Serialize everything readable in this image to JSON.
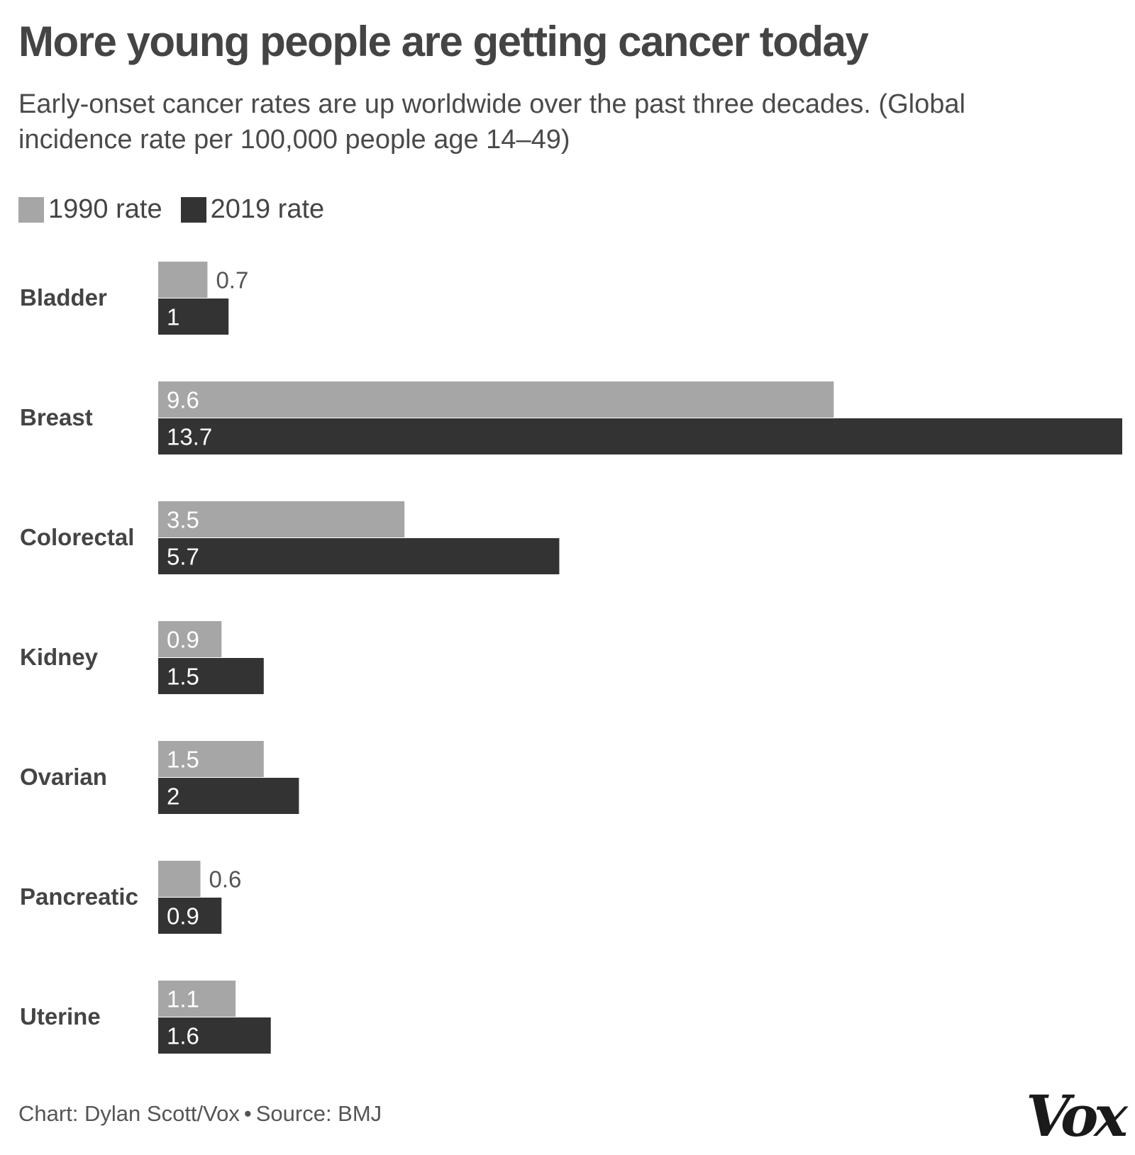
{
  "colors": {
    "series_1990": "#a6a6a6",
    "series_2019": "#333333",
    "category_label": "#444444",
    "label_on_light": "#ffffff",
    "label_outside": "#555555"
  },
  "chart_data": {
    "type": "bar",
    "orientation": "horizontal",
    "title": "More young people are getting cancer today",
    "subtitle": "Early-onset cancer rates are up worldwide over the past three decades. (Global incidence rate per 100,000 people age 14–49)",
    "categories": [
      "Bladder",
      "Breast",
      "Colorectal",
      "Kidney",
      "Ovarian",
      "Pancreatic",
      "Uterine"
    ],
    "series": [
      {
        "name": "1990 rate",
        "values": [
          0.7,
          9.6,
          3.5,
          0.9,
          1.5,
          0.6,
          1.1
        ],
        "labels": [
          "0.7",
          "9.6",
          "3.5",
          "0.9",
          "1.5",
          "0.6",
          "1.1"
        ]
      },
      {
        "name": "2019 rate",
        "values": [
          1,
          13.7,
          5.7,
          1.5,
          2,
          0.9,
          1.6
        ],
        "labels": [
          "1",
          "13.7",
          "5.7",
          "1.5",
          "2",
          "0.9",
          "1.6"
        ]
      }
    ],
    "xlim": [
      0,
      13.7
    ],
    "legend_position": "top-left",
    "grid": false
  },
  "legend": {
    "item_1990": "1990 rate",
    "item_2019": "2019 rate"
  },
  "footer": {
    "credit": "Chart: Dylan Scott/Vox",
    "separator": "•",
    "source": "Source: BMJ"
  },
  "logo_text": "Vox"
}
